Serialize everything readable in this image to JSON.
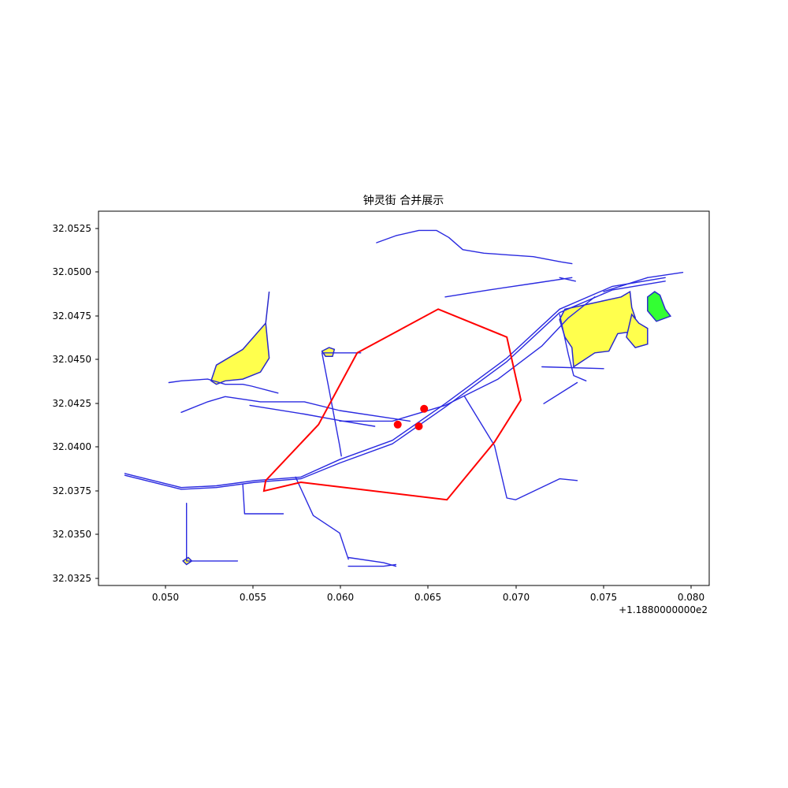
{
  "figure": {
    "title": "钟灵街 合并展示",
    "x_offset_label": "+1.1880000000e2",
    "x_ticks": [
      "0.050",
      "0.055",
      "0.060",
      "0.065",
      "0.070",
      "0.075",
      "0.080"
    ],
    "y_ticks": [
      "32.0525",
      "32.0500",
      "32.0475",
      "32.0450",
      "32.0425",
      "32.0400",
      "32.0375",
      "32.0350",
      "32.0325"
    ]
  },
  "chart_data": {
    "type": "map",
    "title": "钟灵街 合并展示",
    "xlim": [
      118.8463,
      118.881
    ],
    "ylim": [
      32.032,
      32.0534
    ],
    "x_offset": 118.8,
    "colors": {
      "roads": "#2a2ae0",
      "boundary": "#ff0000",
      "landuse_fill": "#ffff4d",
      "park_fill": "#33ff33",
      "points": "#ff0000"
    },
    "layers": {
      "boundary": [
        [
          [
            118.861,
            32.0453
          ],
          [
            118.8656,
            32.0478
          ],
          [
            118.8695,
            32.0462
          ],
          [
            118.8703,
            32.0426
          ],
          [
            118.8688,
            32.0402
          ],
          [
            118.8661,
            32.0369
          ],
          [
            118.8578,
            32.0379
          ],
          [
            118.8557,
            32.0374
          ],
          [
            118.8558,
            32.038
          ],
          [
            118.8588,
            32.0412
          ],
          [
            118.861,
            32.0453
          ]
        ]
      ],
      "points": [
        [
          118.8633,
          32.0412
        ],
        [
          118.8648,
          32.0421
        ],
        [
          118.8645,
          32.0411
        ]
      ],
      "roads": [
        [
          [
            118.8478,
            32.0384
          ],
          [
            118.851,
            32.0376
          ],
          [
            118.853,
            32.0377
          ],
          [
            118.8552,
            32.038
          ],
          [
            118.8578,
            32.0382
          ],
          [
            118.86,
            32.0392
          ],
          [
            118.863,
            32.0403
          ],
          [
            118.866,
            32.0424
          ],
          [
            118.8695,
            32.045
          ],
          [
            118.8725,
            32.0478
          ],
          [
            118.8755,
            32.0491
          ],
          [
            118.8785,
            32.0496
          ]
        ],
        [
          [
            118.8478,
            32.0383
          ],
          [
            118.851,
            32.0375
          ],
          [
            118.853,
            32.0376
          ],
          [
            118.8552,
            32.0379
          ],
          [
            118.8578,
            32.0381
          ],
          [
            118.86,
            32.039
          ],
          [
            118.863,
            32.0401
          ],
          [
            118.866,
            32.0422
          ],
          [
            118.8695,
            32.0448
          ],
          [
            118.8725,
            32.0476
          ],
          [
            118.8755,
            32.0489
          ],
          [
            118.8785,
            32.0494
          ]
        ],
        [
          [
            118.8621,
            32.0516
          ],
          [
            118.8632,
            32.052
          ],
          [
            118.8645,
            32.0523
          ],
          [
            118.8655,
            32.0523
          ],
          [
            118.8662,
            32.0519
          ],
          [
            118.867,
            32.0512
          ],
          [
            118.8682,
            32.051
          ],
          [
            118.871,
            32.0508
          ],
          [
            118.8726,
            32.0505
          ],
          [
            118.8732,
            32.0504
          ]
        ],
        [
          [
            118.8725,
            32.0496
          ],
          [
            118.8734,
            32.0494
          ]
        ],
        [
          [
            118.866,
            32.0485
          ],
          [
            118.8685,
            32.0489
          ],
          [
            118.8712,
            32.0493
          ],
          [
            118.8732,
            32.0496
          ]
        ],
        [
          [
            118.851,
            32.0419
          ],
          [
            118.8525,
            32.0425
          ],
          [
            118.8535,
            32.0428
          ],
          [
            118.8555,
            32.0425
          ],
          [
            118.858,
            32.0425
          ],
          [
            118.86,
            32.042
          ],
          [
            118.864,
            32.0414
          ]
        ],
        [
          [
            118.86,
            32.0414
          ],
          [
            118.863,
            32.0414
          ],
          [
            118.866,
            32.0423
          ],
          [
            118.869,
            32.0438
          ],
          [
            118.8715,
            32.0457
          ],
          [
            118.873,
            32.0473
          ],
          [
            118.8745,
            32.0485
          ]
        ],
        [
          [
            118.8549,
            32.0423
          ],
          [
            118.858,
            32.0418
          ],
          [
            118.8602,
            32.0414
          ],
          [
            118.862,
            32.0411
          ]
        ],
        [
          [
            118.859,
            32.0453
          ],
          [
            118.8594,
            32.0432
          ],
          [
            118.8597,
            32.0416
          ],
          [
            118.86,
            32.04
          ],
          [
            118.8601,
            32.0394
          ]
        ],
        [
          [
            118.8591,
            32.0453
          ],
          [
            118.8612,
            32.0453
          ]
        ],
        [
          [
            118.8575,
            32.0382
          ],
          [
            118.8585,
            32.036
          ],
          [
            118.86,
            32.035
          ],
          [
            118.8605,
            32.0335
          ]
        ],
        [
          [
            118.8605,
            32.0336
          ],
          [
            118.8625,
            32.0333
          ],
          [
            118.8632,
            32.0331
          ]
        ],
        [
          [
            118.8605,
            32.0331
          ],
          [
            118.8625,
            32.0331
          ],
          [
            118.8632,
            32.0332
          ]
        ],
        [
          [
            118.8545,
            32.0378
          ],
          [
            118.8546,
            32.0361
          ],
          [
            118.8568,
            32.0361
          ]
        ],
        [
          [
            118.8513,
            32.0367
          ],
          [
            118.8513,
            32.0334
          ],
          [
            118.8542,
            32.0334
          ]
        ],
        [
          [
            118.8671,
            32.0428
          ],
          [
            118.8688,
            32.04
          ],
          [
            118.8695,
            32.037
          ],
          [
            118.87,
            32.0369
          ],
          [
            118.8725,
            32.0381
          ],
          [
            118.8735,
            32.038
          ]
        ],
        [
          [
            118.8716,
            32.0424
          ],
          [
            118.8735,
            32.0436
          ]
        ],
        [
          [
            118.8715,
            32.0445
          ],
          [
            118.875,
            32.0444
          ]
        ],
        [
          [
            118.8725,
            32.0475
          ],
          [
            118.873,
            32.0452
          ],
          [
            118.8733,
            32.044
          ],
          [
            118.874,
            32.0437
          ]
        ],
        [
          [
            118.875,
            32.0488
          ],
          [
            118.8775,
            32.0496
          ]
        ],
        [
          [
            118.8775,
            32.0496
          ],
          [
            118.8795,
            32.0499
          ]
        ],
        [
          [
            118.8503,
            32.0436
          ],
          [
            118.851,
            32.0437
          ],
          [
            118.8525,
            32.0438
          ],
          [
            118.8535,
            32.0435
          ],
          [
            118.8545,
            32.0435
          ],
          [
            118.855,
            32.0434
          ],
          [
            118.8565,
            32.043
          ]
        ]
      ],
      "landuse": [
        [
          [
            118.856,
            32.0488
          ],
          [
            118.8558,
            32.047
          ],
          [
            118.8545,
            32.0455
          ],
          [
            118.853,
            32.0446
          ],
          [
            118.8527,
            32.0437
          ],
          [
            118.853,
            32.0435
          ],
          [
            118.8535,
            32.0437
          ],
          [
            118.8545,
            32.0438
          ],
          [
            118.8555,
            32.0442
          ],
          [
            118.856,
            32.045
          ],
          [
            118.8558,
            32.047
          ],
          [
            118.856,
            32.0488
          ]
        ],
        [
          [
            118.8728,
            32.0478
          ],
          [
            118.8742,
            32.0481
          ],
          [
            118.876,
            32.0485
          ],
          [
            118.8765,
            32.0488
          ],
          [
            118.8766,
            32.0479
          ],
          [
            118.8768,
            32.0473
          ],
          [
            118.8765,
            32.0465
          ],
          [
            118.8758,
            32.0464
          ],
          [
            118.8753,
            32.0454
          ],
          [
            118.8745,
            32.0453
          ],
          [
            118.8733,
            32.0445
          ],
          [
            118.8732,
            32.0456
          ],
          [
            118.8728,
            32.0462
          ],
          [
            118.8725,
            32.0472
          ],
          [
            118.8728,
            32.0478
          ]
        ],
        [
          [
            118.8766,
            32.0475
          ],
          [
            118.877,
            32.047
          ],
          [
            118.8775,
            32.0467
          ],
          [
            118.8775,
            32.0458
          ],
          [
            118.8768,
            32.0456
          ],
          [
            118.8763,
            32.0462
          ],
          [
            118.8766,
            32.0475
          ]
        ],
        [
          [
            118.8592,
            32.0451
          ],
          [
            118.859,
            32.0454
          ],
          [
            118.8594,
            32.0456
          ],
          [
            118.8597,
            32.0455
          ],
          [
            118.8596,
            32.0451
          ],
          [
            118.8592,
            32.0451
          ]
        ],
        [
          [
            118.8511,
            32.0334
          ],
          [
            118.8514,
            32.0336
          ],
          [
            118.8516,
            32.0334
          ],
          [
            118.8513,
            32.0332
          ],
          [
            118.8511,
            32.0334
          ]
        ]
      ],
      "park": [
        [
          [
            118.8775,
            32.0485
          ],
          [
            118.8779,
            32.0488
          ],
          [
            118.8782,
            32.0486
          ],
          [
            118.8785,
            32.0478
          ],
          [
            118.8788,
            32.0474
          ],
          [
            118.878,
            32.0471
          ],
          [
            118.8775,
            32.0477
          ],
          [
            118.8775,
            32.0485
          ]
        ]
      ]
    }
  }
}
